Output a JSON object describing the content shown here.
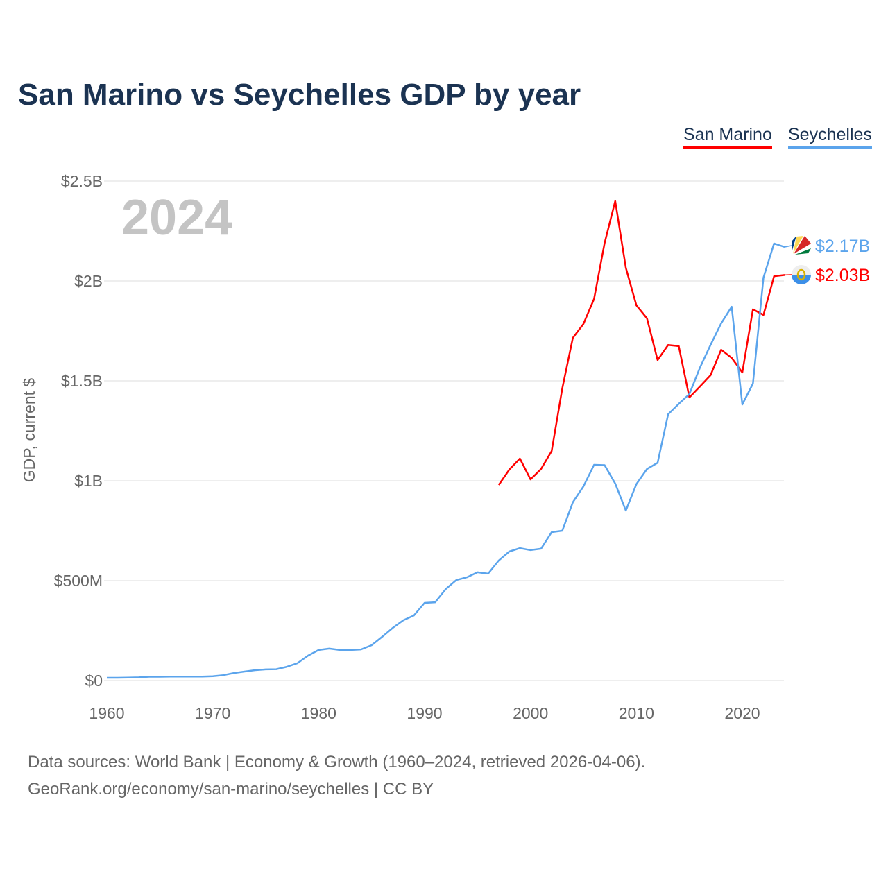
{
  "chart_data": {
    "type": "line",
    "title": "San Marino vs Seychelles GDP by year",
    "xlabel": "",
    "ylabel": "GDP, current $",
    "year_label": "2024",
    "xlim": [
      1960,
      2024
    ],
    "ylim": [
      0,
      2.5
    ],
    "grid": true,
    "legend_placement": "top-right",
    "x_ticks": [
      1960,
      1970,
      1980,
      1990,
      2000,
      2010,
      2020
    ],
    "x_tick_labels": [
      "1960",
      "1970",
      "1980",
      "1990",
      "2000",
      "2010",
      "2020"
    ],
    "y_ticks": [
      0,
      0.5,
      1,
      1.5,
      2,
      2.5
    ],
    "y_tick_labels": [
      "$0",
      "$500M",
      "$1B",
      "$1.5B",
      "$2B",
      "$2.5B"
    ],
    "series": [
      {
        "name": "San Marino",
        "color": "#ff0000",
        "end_label": "$2.03B",
        "flag": "san-marino-flag",
        "start_year": 1997,
        "values": [
          0.979,
          1.056,
          1.111,
          1.007,
          1.059,
          1.149,
          1.462,
          1.715,
          1.785,
          1.91,
          2.19,
          2.4,
          2.066,
          1.878,
          1.813,
          1.604,
          1.68,
          1.674,
          1.417,
          1.472,
          1.528,
          1.656,
          1.615,
          1.542,
          1.858,
          1.83,
          2.024,
          2.03
        ]
      },
      {
        "name": "Seychelles",
        "color": "#5ba4ec",
        "end_label": "$2.17B",
        "flag": "seychelles-flag",
        "start_year": 1960,
        "values": [
          0.014,
          0.014,
          0.015,
          0.016,
          0.019,
          0.019,
          0.02,
          0.02,
          0.02,
          0.02,
          0.022,
          0.027,
          0.038,
          0.045,
          0.052,
          0.056,
          0.057,
          0.069,
          0.087,
          0.125,
          0.153,
          0.16,
          0.153,
          0.153,
          0.156,
          0.177,
          0.219,
          0.264,
          0.302,
          0.326,
          0.389,
          0.392,
          0.458,
          0.503,
          0.517,
          0.542,
          0.535,
          0.601,
          0.646,
          0.663,
          0.653,
          0.66,
          0.743,
          0.75,
          0.892,
          0.972,
          1.08,
          1.078,
          0.986,
          0.851,
          0.983,
          1.059,
          1.09,
          1.333,
          1.385,
          1.434,
          1.566,
          1.68,
          1.788,
          1.871,
          1.382,
          1.486,
          2.017,
          2.188,
          2.17
        ]
      }
    ]
  },
  "footer": {
    "line1": "Data sources: World Bank | Economy & Growth (1960–2024, retrieved 2026-04-06).",
    "line2": "GeoRank.org/economy/san-marino/seychelles | CC BY"
  }
}
